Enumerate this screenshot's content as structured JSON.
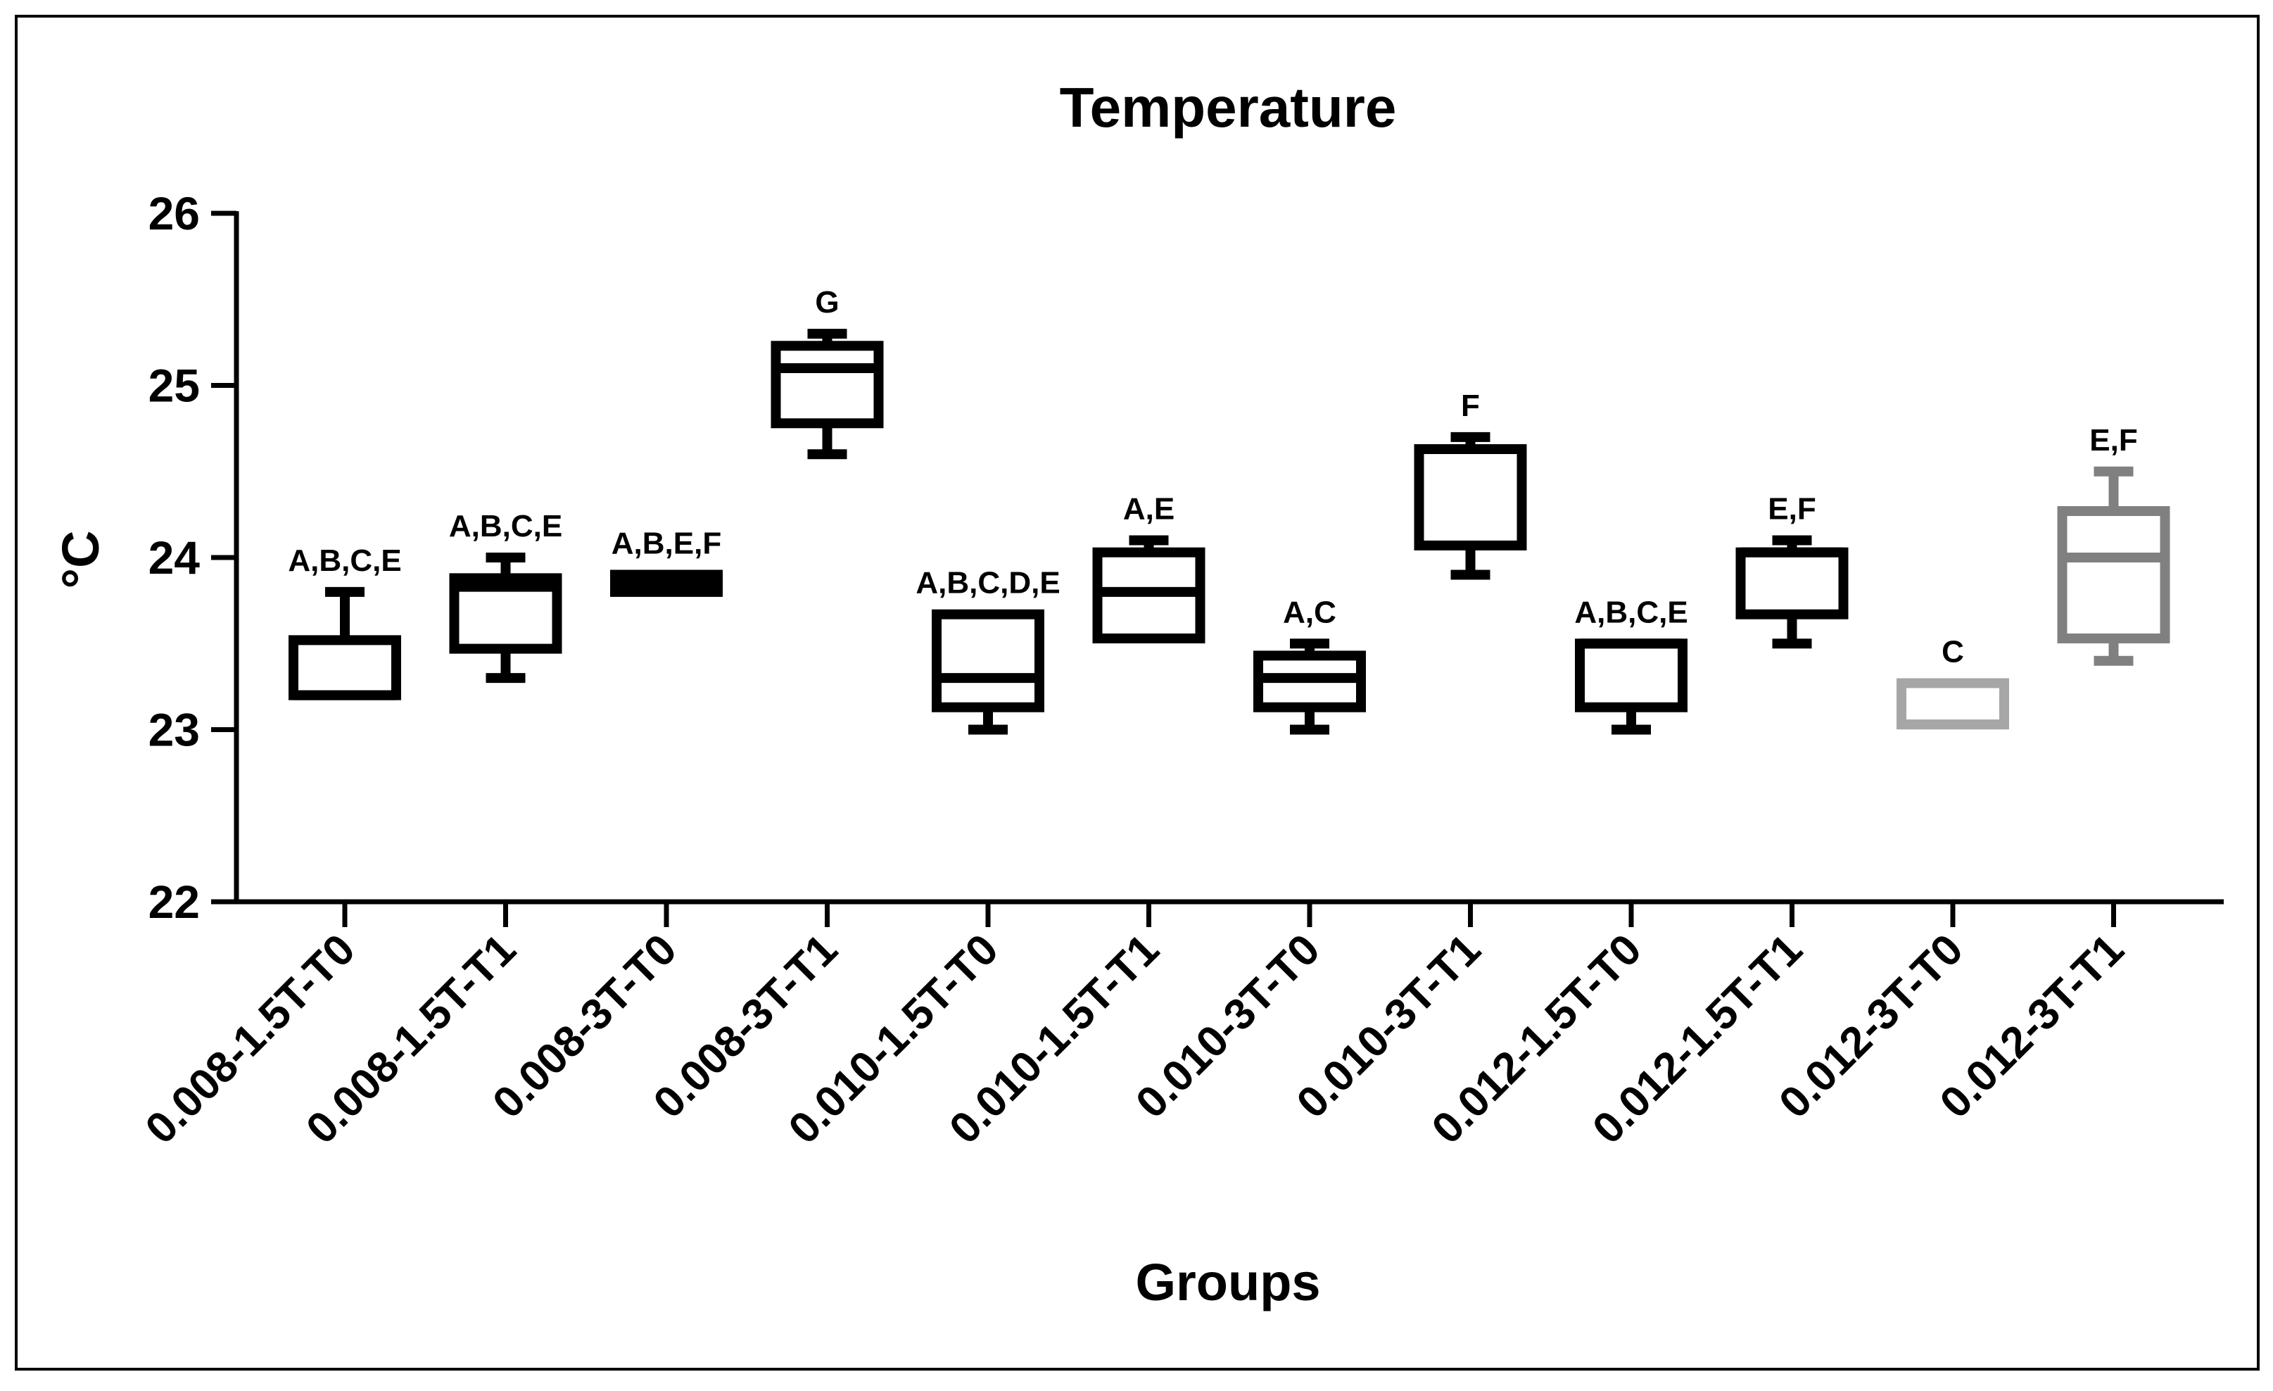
{
  "chart_data": {
    "type": "box",
    "title": "Temperature",
    "xlabel": "Groups",
    "ylabel": "°C",
    "ylim": [
      22,
      26
    ],
    "yticks": [
      22,
      23,
      24,
      25,
      26
    ],
    "ytick_labels": [
      "22",
      "23",
      "24",
      "25",
      "26"
    ],
    "categories": [
      "0.008-1.5T-T0",
      "0.008-1.5T-T1",
      "0.008-3T-T0",
      "0.008-3T-T1",
      "0.010-1.5T-T0",
      "0.010-1.5T-T1",
      "0.010-3T-T0",
      "0.010-3T-T1",
      "0.012-1.5T-T0",
      "0.012-1.5T-T1",
      "0.012-3T-T0",
      "0.012-3T-T1"
    ],
    "boxes": [
      {
        "min": 23.2,
        "q1": 23.2,
        "median": 23.2,
        "q3": 23.52,
        "max": 23.8,
        "label": "A,B,C,E",
        "color": "#000000"
      },
      {
        "min": 23.3,
        "q1": 23.47,
        "median": 23.83,
        "q3": 23.88,
        "max": 24.0,
        "label": "A,B,C,E",
        "color": "#000000"
      },
      {
        "min": 23.8,
        "q1": 23.8,
        "median": 23.85,
        "q3": 23.9,
        "max": 23.9,
        "label": "A,B,E,F",
        "color": "#000000"
      },
      {
        "min": 24.6,
        "q1": 24.78,
        "median": 25.1,
        "q3": 25.23,
        "max": 25.3,
        "label": "G",
        "color": "#000000"
      },
      {
        "min": 23.0,
        "q1": 23.13,
        "median": 23.3,
        "q3": 23.67,
        "max": 23.67,
        "label": "A,B,C,D,E",
        "color": "#000000"
      },
      {
        "min": 23.53,
        "q1": 23.53,
        "median": 23.8,
        "q3": 24.03,
        "max": 24.1,
        "label": "A,E",
        "color": "#000000"
      },
      {
        "min": 23.0,
        "q1": 23.13,
        "median": 23.3,
        "q3": 23.43,
        "max": 23.5,
        "label": "A,C",
        "color": "#000000"
      },
      {
        "min": 23.9,
        "q1": 24.07,
        "median": 24.63,
        "q3": 24.63,
        "max": 24.7,
        "label": "F",
        "color": "#000000"
      },
      {
        "min": 23.0,
        "q1": 23.13,
        "median": 23.5,
        "q3": 23.5,
        "max": 23.5,
        "label": "A,B,C,E",
        "color": "#000000"
      },
      {
        "min": 23.5,
        "q1": 23.67,
        "median": 24.03,
        "q3": 24.03,
        "max": 24.1,
        "label": "E,F",
        "color": "#000000"
      },
      {
        "min": 23.03,
        "q1": 23.03,
        "median": 23.03,
        "q3": 23.27,
        "max": 23.27,
        "label": "C",
        "color": "#a6a6a6"
      },
      {
        "min": 23.4,
        "q1": 23.53,
        "median": 24.0,
        "q3": 24.27,
        "max": 24.5,
        "label": "E,F",
        "color": "#808080"
      }
    ]
  }
}
